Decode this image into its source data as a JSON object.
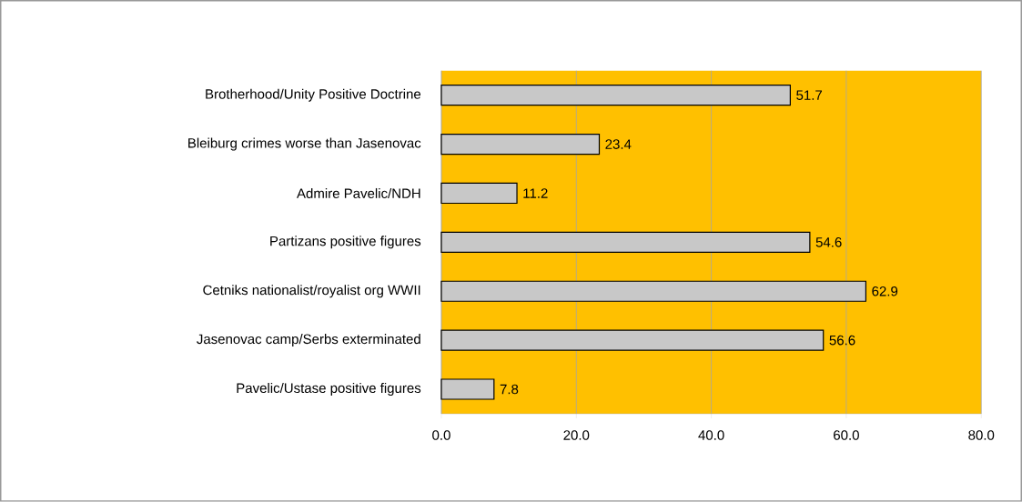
{
  "chart_data": {
    "type": "bar",
    "orientation": "horizontal",
    "categories": [
      "Brotherhood/Unity Positive Doctrine",
      "Bleiburg crimes worse than Jasenovac",
      "Admire Pavelic/NDH",
      "Partizans positive figures",
      "Cetniks nationalist/royalist org WWII",
      "Jasenovac camp/Serbs exterminated",
      "Pavelic/Ustase positive figures"
    ],
    "values": [
      51.7,
      23.4,
      11.2,
      54.6,
      62.9,
      56.6,
      7.8
    ],
    "color": "#c8c8c8",
    "xlim": [
      0,
      80
    ],
    "xticks": [
      {
        "value": 0,
        "label": "0.0"
      },
      {
        "value": 20,
        "label": "20.0"
      },
      {
        "value": 40,
        "label": "40.0"
      },
      {
        "value": 60,
        "label": "60.0"
      },
      {
        "value": 80,
        "label": "80.0"
      }
    ],
    "grid": "x",
    "data_labels": true
  }
}
